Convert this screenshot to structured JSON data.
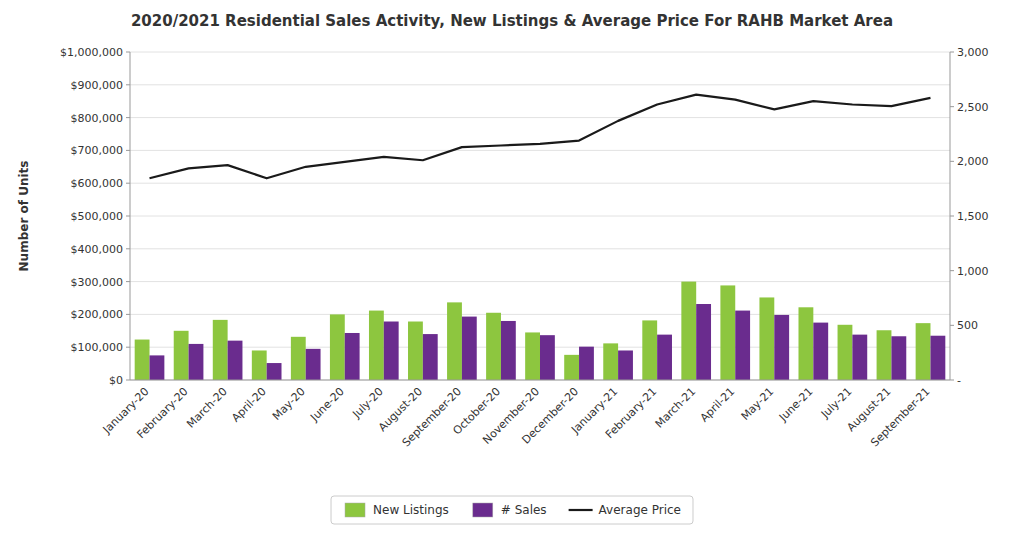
{
  "chart_data": {
    "type": "bar",
    "title": "2020/2021 Residential Sales Activity, New Listings & Average Price For RAHB Market Area",
    "ylabel": "Number of Units",
    "categories": [
      "January-20",
      "February-20",
      "March-20",
      "April-20",
      "May-20",
      "June-20",
      "July-20",
      "August-20",
      "September-20",
      "October-20",
      "November-20",
      "December-20",
      "January-21",
      "February-21",
      "March-21",
      "April-21",
      "May-21",
      "June-21",
      "July-21",
      "August-21",
      "September-21"
    ],
    "series": [
      {
        "name": "New Listings",
        "type": "bar",
        "axis": "y2",
        "color": "#8DC63F",
        "values": [
          370,
          450,
          550,
          270,
          395,
          600,
          635,
          535,
          710,
          615,
          435,
          230,
          335,
          545,
          900,
          865,
          755,
          665,
          505,
          455,
          520
        ]
      },
      {
        "name": "# Sales",
        "type": "bar",
        "axis": "y2",
        "color": "#6A2C8E",
        "values": [
          225,
          330,
          360,
          155,
          285,
          430,
          535,
          420,
          580,
          540,
          410,
          305,
          270,
          415,
          695,
          635,
          595,
          525,
          415,
          400,
          405
        ]
      },
      {
        "name": "Average Price",
        "type": "line",
        "color": "#1a1a1a",
        "values": [
          615000,
          645000,
          655000,
          615000,
          650000,
          665000,
          680000,
          670000,
          710000,
          715000,
          720000,
          730000,
          790000,
          840000,
          870000,
          855000,
          825000,
          850000,
          840000,
          835000,
          860000
        ]
      }
    ],
    "ylim": [
      0,
      1000000
    ],
    "yticks": [
      {
        "value": 0,
        "label": "$0"
      },
      {
        "value": 100000,
        "label": "$100,000"
      },
      {
        "value": 200000,
        "label": "$200,000"
      },
      {
        "value": 300000,
        "label": "$300,000"
      },
      {
        "value": 400000,
        "label": "$400,000"
      },
      {
        "value": 500000,
        "label": "$500,000"
      },
      {
        "value": 600000,
        "label": "$600,000"
      },
      {
        "value": 700000,
        "label": "$700,000"
      },
      {
        "value": 800000,
        "label": "$800,000"
      },
      {
        "value": 900000,
        "label": "$900,000"
      },
      {
        "value": 1000000,
        "label": "$1,000,000"
      }
    ],
    "y2lim": [
      0,
      3000
    ],
    "y2ticks": [
      {
        "value": 0,
        "label": "-"
      },
      500,
      {
        "value": 1000,
        "label": "1,000"
      },
      {
        "value": 1500,
        "label": "1,500"
      },
      {
        "value": 2000,
        "label": "2,000"
      },
      {
        "value": 2500,
        "label": "2,500"
      },
      {
        "value": 3000,
        "label": "3,000"
      }
    ],
    "grid": true,
    "legend": "bottom"
  }
}
